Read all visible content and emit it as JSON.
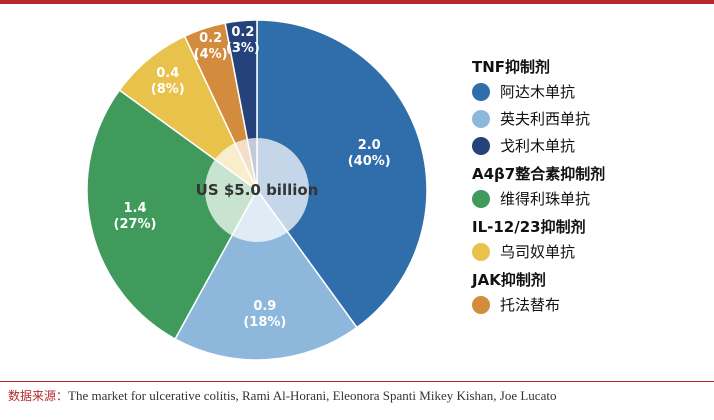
{
  "chart_data": {
    "type": "pie",
    "center_label": "US $5.0 billion",
    "slices": [
      {
        "name": "阿达木单抗",
        "value": 2.0,
        "percent": "40%",
        "value_label": "2.0",
        "percent_label": "(40%)",
        "color": "#2f6dab"
      },
      {
        "name": "英夫利西单抗",
        "value": 0.9,
        "percent": "18%",
        "value_label": "0.9",
        "percent_label": "(18%)",
        "color": "#8db8dc"
      },
      {
        "name": "维得利珠单抗",
        "value": 1.4,
        "percent": "27%",
        "value_label": "1.4",
        "percent_label": "(27%)",
        "color": "#3f9a5c"
      },
      {
        "name": "乌司奴单抗",
        "value": 0.4,
        "percent": "8%",
        "value_label": "0.4",
        "percent_label": "(8%)",
        "color": "#e8c24a"
      },
      {
        "name": "托法替布",
        "value": 0.2,
        "percent": "4%",
        "value_label": "0.2",
        "percent_label": "(4%)",
        "color": "#d38b3e"
      },
      {
        "name": "戈利木单抗",
        "value": 0.2,
        "percent": "3%",
        "value_label": "0.2",
        "percent_label": "(3%)",
        "color": "#26427a"
      }
    ],
    "legend": [
      {
        "group": "TNF抑制剂",
        "items": [
          "阿达木单抗",
          "英夫利西单抗",
          "戈利木单抗"
        ]
      },
      {
        "group": "A4β7整合素抑制剂",
        "items": [
          "维得利珠单抗"
        ]
      },
      {
        "group": "IL-12/23抑制剂",
        "items": [
          "乌司奴单抗"
        ]
      },
      {
        "group": "JAK抑制剂",
        "items": [
          "托法替布"
        ]
      }
    ],
    "legend_placement": "right"
  },
  "source": {
    "prefix": "数据来源：",
    "text": "The market for ulcerative colitis, Rami Al-Horani, Eleonora Spanti Mikey Kishan, Joe Lucato"
  }
}
